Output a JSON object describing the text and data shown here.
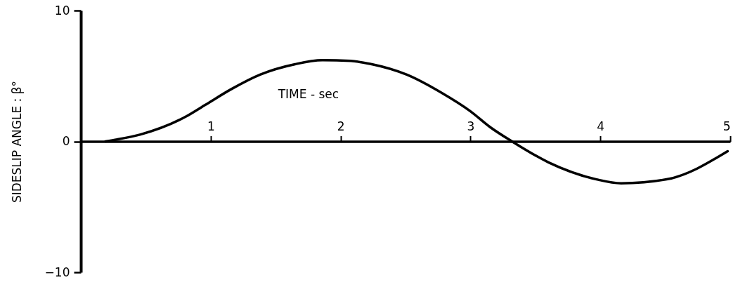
{
  "chart_data": {
    "type": "line",
    "xlabel": "TIME - sec",
    "ylabel": "SIDESLIP ANGLE : β°",
    "x": [
      0.19,
      0.28,
      0.46,
      0.81,
      0.96,
      1.16,
      1.38,
      1.65,
      1.86,
      2.08,
      2.24,
      2.51,
      2.78,
      3.0,
      3.15,
      3.32,
      3.6,
      3.97,
      4.16,
      4.51,
      4.98
    ],
    "series": [
      {
        "color": "#000000",
        "values": [
          0.0,
          0.15,
          0.53,
          1.9,
          2.8,
          4.0,
          5.1,
          5.9,
          6.2,
          6.15,
          5.9,
          5.1,
          3.7,
          2.3,
          1.1,
          0.0,
          -1.6,
          -2.9,
          -3.2,
          -2.9,
          -0.75
        ]
      }
    ],
    "xlim": [
      0,
      5
    ],
    "xticks": [
      1,
      2,
      3,
      4,
      5
    ],
    "ylim": [
      -10,
      10
    ],
    "yticks": [
      -10,
      0,
      10
    ],
    "grid": false,
    "marker": "none",
    "line_style": "solid"
  }
}
